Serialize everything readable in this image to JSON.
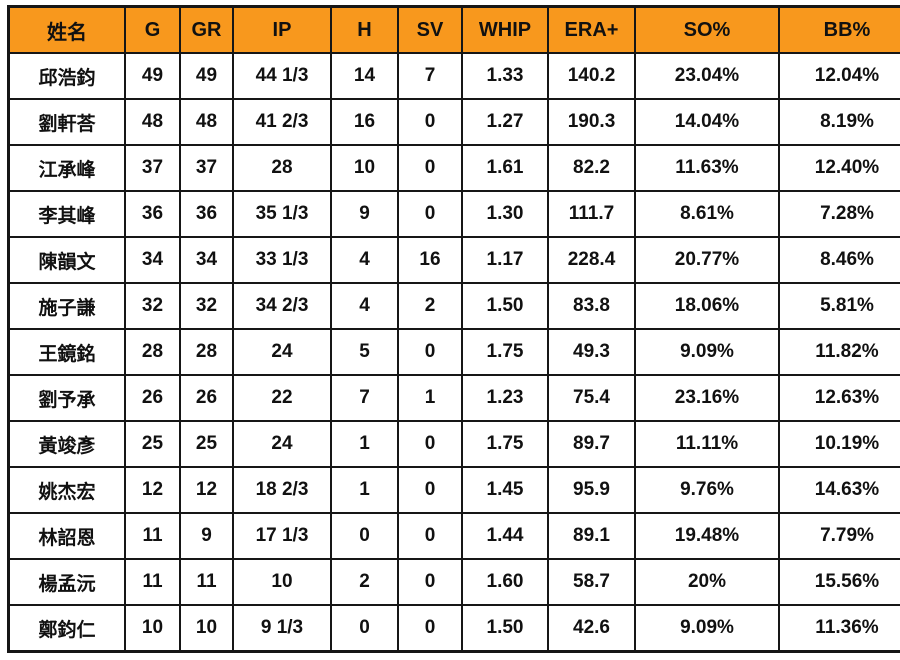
{
  "chart_data": {
    "type": "table",
    "title": "",
    "columns": [
      "姓名",
      "G",
      "GR",
      "IP",
      "H",
      "SV",
      "WHIP",
      "ERA+",
      "SO%",
      "BB%"
    ],
    "column_keys": [
      "name",
      "g",
      "gr",
      "ip",
      "h",
      "sv",
      "whip",
      "era-plus",
      "so-pct",
      "bb-pct"
    ],
    "rows": [
      [
        "邱浩鈞",
        "49",
        "49",
        "44 1/3",
        "14",
        "7",
        "1.33",
        "140.2",
        "23.04%",
        "12.04%"
      ],
      [
        "劉軒荅",
        "48",
        "48",
        "41 2/3",
        "16",
        "0",
        "1.27",
        "190.3",
        "14.04%",
        "8.19%"
      ],
      [
        "江承峰",
        "37",
        "37",
        "28",
        "10",
        "0",
        "1.61",
        "82.2",
        "11.63%",
        "12.40%"
      ],
      [
        "李其峰",
        "36",
        "36",
        "35 1/3",
        "9",
        "0",
        "1.30",
        "111.7",
        "8.61%",
        "7.28%"
      ],
      [
        "陳韻文",
        "34",
        "34",
        "33 1/3",
        "4",
        "16",
        "1.17",
        "228.4",
        "20.77%",
        "8.46%"
      ],
      [
        "施子謙",
        "32",
        "32",
        "34 2/3",
        "4",
        "2",
        "1.50",
        "83.8",
        "18.06%",
        "5.81%"
      ],
      [
        "王鏡銘",
        "28",
        "28",
        "24",
        "5",
        "0",
        "1.75",
        "49.3",
        "9.09%",
        "11.82%"
      ],
      [
        "劉予承",
        "26",
        "26",
        "22",
        "7",
        "1",
        "1.23",
        "75.4",
        "23.16%",
        "12.63%"
      ],
      [
        "黃竣彥",
        "25",
        "25",
        "24",
        "1",
        "0",
        "1.75",
        "89.7",
        "11.11%",
        "10.19%"
      ],
      [
        "姚杰宏",
        "12",
        "12",
        "18 2/3",
        "1",
        "0",
        "1.45",
        "95.9",
        "9.76%",
        "14.63%"
      ],
      [
        "林詔恩",
        "11",
        "9",
        "17 1/3",
        "0",
        "0",
        "1.44",
        "89.1",
        "19.48%",
        "7.79%"
      ],
      [
        "楊孟沅",
        "11",
        "11",
        "10",
        "2",
        "0",
        "1.60",
        "58.7",
        "20%",
        "15.56%"
      ],
      [
        "鄭鈞仁",
        "10",
        "10",
        "9 1/3",
        "0",
        "0",
        "1.50",
        "42.6",
        "9.09%",
        "11.36%"
      ]
    ],
    "layout": {
      "grid": true,
      "header_position": "top"
    }
  },
  "colors": {
    "header_background": "#F8981D",
    "grid_border": "#161616",
    "text": "#111111",
    "row_background": "#FFFFFF"
  }
}
